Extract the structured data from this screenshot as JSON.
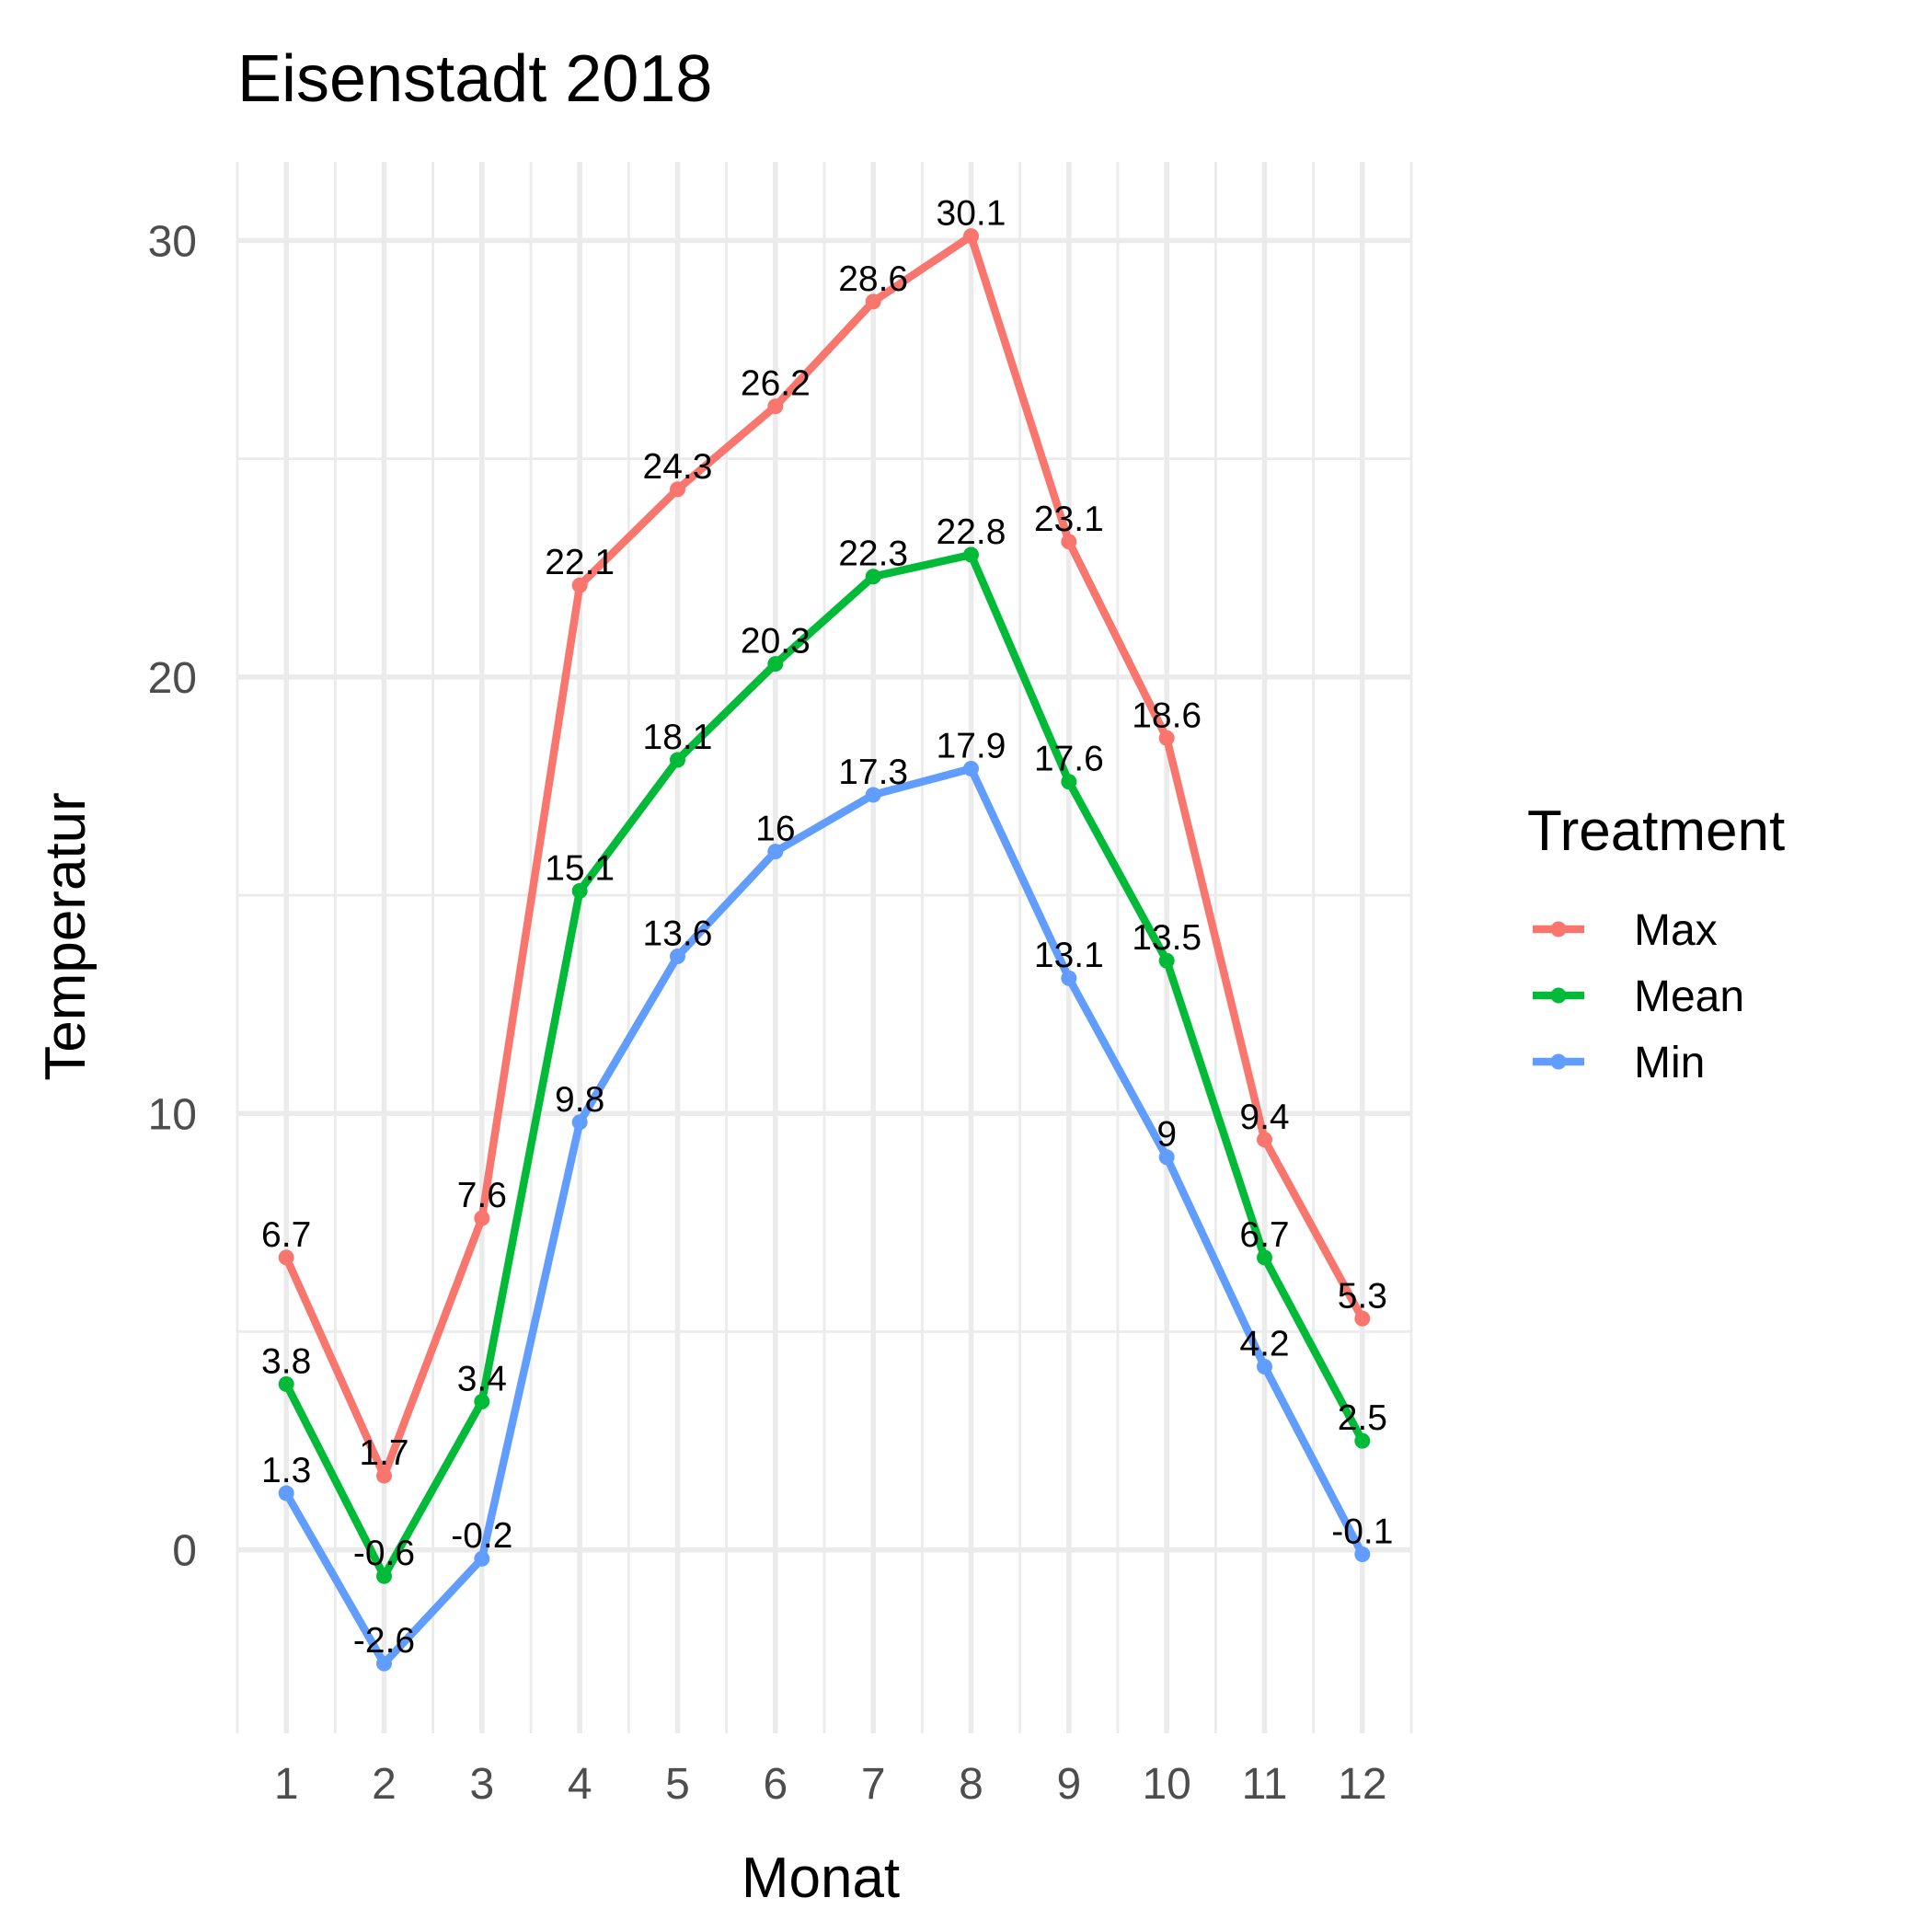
{
  "chart_data": {
    "type": "line",
    "title": "Eisenstadt 2018",
    "xlabel": "Monat",
    "ylabel": "Temperatur",
    "x": [
      1,
      2,
      3,
      4,
      5,
      6,
      7,
      8,
      9,
      10,
      11,
      12
    ],
    "x_tick_labels": [
      "1",
      "2",
      "3",
      "4",
      "5",
      "6",
      "7",
      "8",
      "9",
      "10",
      "11",
      "12"
    ],
    "y_ticks": [
      0,
      10,
      20,
      30
    ],
    "y_tick_labels": [
      "0",
      "10",
      "20",
      "30"
    ],
    "xlim": [
      0.5,
      12.5
    ],
    "ylim": [
      -4.2,
      31.8
    ],
    "grid": true,
    "legend": {
      "title": "Treatment",
      "position": "right"
    },
    "series": [
      {
        "name": "Max",
        "color": "#F8766D",
        "values": [
          6.7,
          1.7,
          7.6,
          22.1,
          24.3,
          26.2,
          28.6,
          30.1,
          23.1,
          18.6,
          9.4,
          5.3
        ]
      },
      {
        "name": "Mean",
        "color": "#00BA38",
        "values": [
          3.8,
          -0.6,
          3.4,
          15.1,
          18.1,
          20.3,
          22.3,
          22.8,
          17.6,
          13.5,
          6.7,
          2.5
        ]
      },
      {
        "name": "Min",
        "color": "#619CFF",
        "values": [
          1.3,
          -2.6,
          -0.2,
          9.8,
          13.6,
          16,
          17.3,
          17.9,
          13.1,
          9,
          4.2,
          -0.1
        ]
      }
    ],
    "data_labels": {
      "Max": [
        "6.7",
        "1.7",
        "7.6",
        "22.1",
        "24.3",
        "26.2",
        "28.6",
        "30.1",
        "23.1",
        "18.6",
        "9.4",
        "5.3"
      ],
      "Mean": [
        "3.8",
        "-0.6",
        "3.4",
        "15.1",
        "18.1",
        "20.3",
        "22.3",
        "22.8",
        "17.6",
        "13.5",
        "6.7",
        "2.5"
      ],
      "Min": [
        "1.3",
        "-2.6",
        "-0.2",
        "9.8",
        "13.6",
        "16",
        "17.3",
        "17.9",
        "13.1",
        "9",
        "4.2",
        "-0.1"
      ]
    }
  }
}
